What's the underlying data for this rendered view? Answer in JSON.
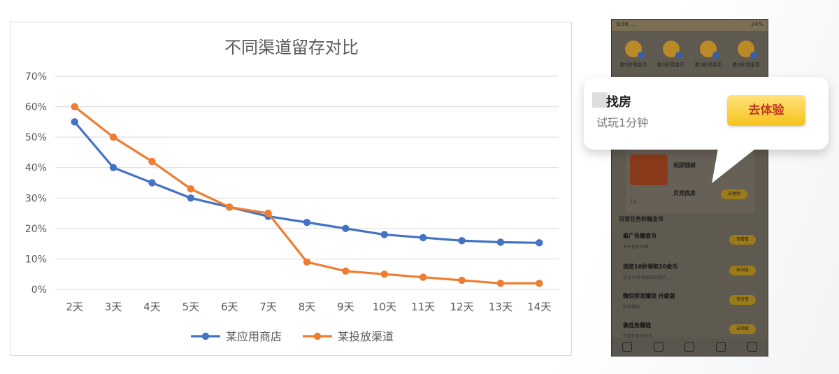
{
  "chart_data": {
    "type": "line",
    "title": "不同渠道留存对比",
    "categories": [
      "2天",
      "3天",
      "4天",
      "5天",
      "6天",
      "7天",
      "8天",
      "9天",
      "10天",
      "11天",
      "12天",
      "13天",
      "14天"
    ],
    "ylim": [
      0,
      70
    ],
    "yticks": [
      "0%",
      "10%",
      "20%",
      "30%",
      "40%",
      "50%",
      "60%",
      "70%"
    ],
    "grid": true,
    "legend_position": "bottom",
    "series": [
      {
        "name": "某应用商店",
        "color": "#4472C4",
        "values": [
          55,
          40,
          35,
          30,
          27,
          24,
          22,
          20,
          18,
          17,
          16,
          15.5,
          15.3
        ]
      },
      {
        "name": "某投放渠道",
        "color": "#ED7D31",
        "values": [
          60,
          50,
          42,
          33,
          27,
          25,
          9,
          6,
          5,
          4,
          3,
          2,
          2
        ]
      }
    ]
  },
  "phone": {
    "status_left": "9:36 …",
    "status_right": "24%",
    "coins": [
      "看5秒领金币",
      "看5秒领金币",
      "看5秒领金币",
      "看5秒领金币"
    ],
    "card_row1": "玩捉钱树",
    "card_row2": "贝壳找房",
    "card_meta": "1/2",
    "card_button": "去体验",
    "section_title": "日常任务秒赚金币",
    "tasks": [
      {
        "name": "看广告赚金币",
        "sub": "天天看天天赚",
        "button": "去看看"
      },
      {
        "name": "浏览10秒领取20金币",
        "sub": "浏览10秒领取相应金币",
        "button": "去浏览"
      },
      {
        "name": "微信转发赚钱 升级版",
        "sub": "转发赚钱",
        "button": "去分享"
      },
      {
        "name": "做任务赚钱",
        "sub": "完成任务领金币",
        "button": "去领取"
      }
    ]
  },
  "popup": {
    "title": "找房",
    "subtitle": "试玩1分钟",
    "cta": "去体验"
  }
}
